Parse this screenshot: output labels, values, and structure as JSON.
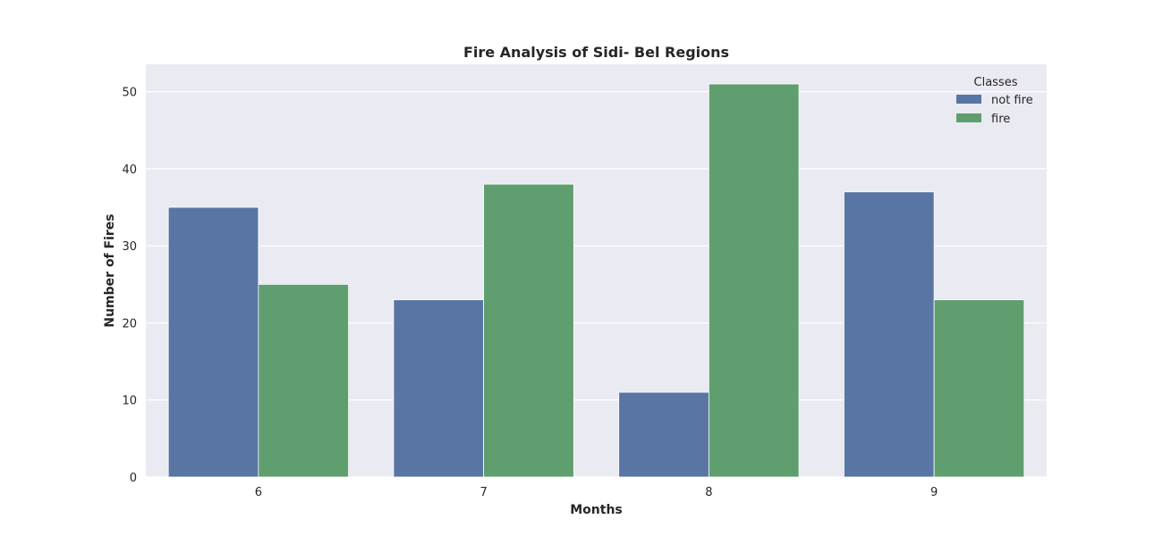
{
  "chart_data": {
    "type": "bar",
    "title": "Fire Analysis of Sidi- Bel Regions",
    "xlabel": "Months",
    "ylabel": "Number of Fires",
    "categories": [
      "6",
      "7",
      "8",
      "9"
    ],
    "series": [
      {
        "name": "not fire",
        "values": [
          35,
          23,
          11,
          37
        ],
        "color": "#5875a4"
      },
      {
        "name": "fire",
        "values": [
          25,
          38,
          51,
          23
        ],
        "color": "#5f9e6e"
      }
    ],
    "ylim": [
      0,
      53.55
    ],
    "yticks": [
      0,
      10,
      20,
      30,
      40,
      50
    ],
    "legend": {
      "title": "Classes",
      "placement": "top-right"
    },
    "grid": true,
    "background": "#eaeaf2",
    "grid_color": "#ffffff"
  }
}
